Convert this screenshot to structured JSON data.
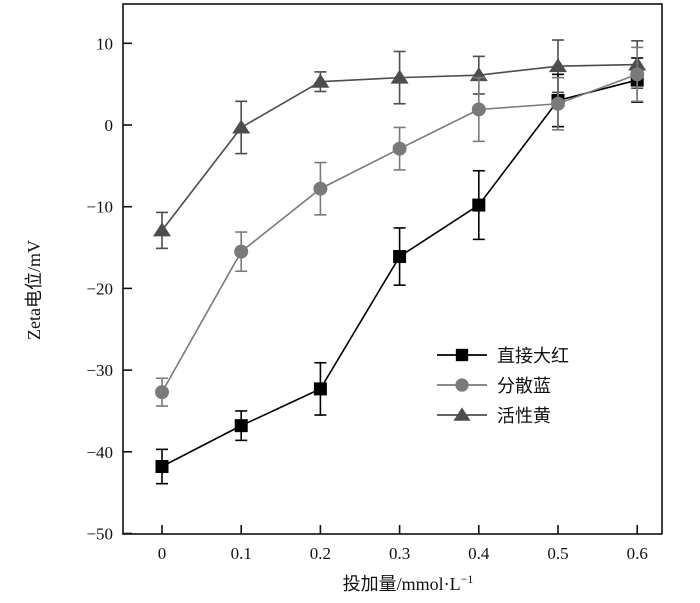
{
  "chart_data": {
    "type": "line",
    "title": "",
    "xlabel": "投加量/mmol·L",
    "xlabel_sup": "−1",
    "ylabel": "Zeta电位/mV",
    "xlim": [
      -0.05,
      0.63
    ],
    "ylim": [
      -50,
      15
    ],
    "x": [
      0,
      0.1,
      0.2,
      0.3,
      0.4,
      0.5,
      0.6
    ],
    "x_ticks": [
      0,
      0.1,
      0.2,
      0.3,
      0.4,
      0.5,
      0.6
    ],
    "x_tick_labels": [
      "0",
      "0.1",
      "0.2",
      "0.3",
      "0.4",
      "0.5",
      "0.6"
    ],
    "y_ticks": [
      10,
      0,
      -10,
      -20,
      -30,
      -40,
      -50
    ],
    "y_tick_labels": [
      "10",
      "0",
      "−10",
      "−20",
      "−30",
      "−40",
      "−50"
    ],
    "grid": false,
    "legend_position": "lower-right",
    "series": [
      {
        "name": "直接大红",
        "marker": "square",
        "color": "#000000",
        "values": [
          -41.8,
          -36.8,
          -32.3,
          -16.1,
          -9.8,
          3.0,
          5.5
        ],
        "errors": [
          2.1,
          1.8,
          3.2,
          3.5,
          4.2,
          3.2,
          2.7
        ]
      },
      {
        "name": "分散蓝",
        "marker": "circle",
        "color": "#7a7a7a",
        "values": [
          -32.7,
          -15.5,
          -7.8,
          -2.9,
          1.9,
          2.6,
          6.2
        ],
        "errors": [
          1.7,
          2.4,
          3.2,
          2.6,
          3.9,
          3.2,
          3.3
        ]
      },
      {
        "name": "活性黄",
        "marker": "triangle",
        "color": "#4d4d4d",
        "values": [
          -12.9,
          -0.3,
          5.3,
          5.8,
          6.1,
          7.2,
          7.4
        ],
        "errors": [
          2.2,
          3.2,
          1.2,
          3.2,
          2.3,
          3.2,
          2.9
        ]
      }
    ]
  }
}
